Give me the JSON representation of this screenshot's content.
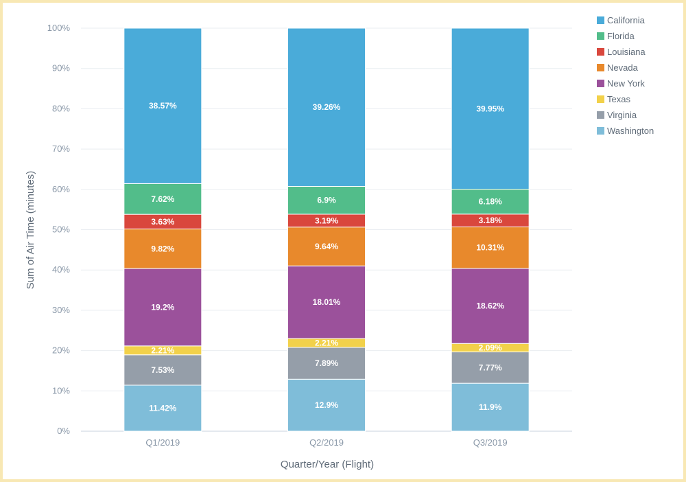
{
  "chart_data": {
    "type": "bar",
    "stacked": true,
    "normalized": true,
    "title": "",
    "xlabel": "Quarter/Year (Flight)",
    "ylabel": "Sum of Air Time (minutes)",
    "ylim": [
      0,
      100
    ],
    "yticks": [
      "0%",
      "10%",
      "20%",
      "30%",
      "40%",
      "50%",
      "60%",
      "70%",
      "80%",
      "90%",
      "100%"
    ],
    "grid": true,
    "legend_position": "top-right",
    "categories": [
      "Q1/2019",
      "Q2/2019",
      "Q3/2019"
    ],
    "series": [
      {
        "name": "Washington",
        "color": "#7fbdd9",
        "values": [
          11.42,
          12.9,
          11.9
        ],
        "labels": [
          "11.42%",
          "12.9%",
          "11.9%"
        ]
      },
      {
        "name": "Virginia",
        "color": "#959ea9",
        "values": [
          7.53,
          7.89,
          7.77
        ],
        "labels": [
          "7.53%",
          "7.89%",
          "7.77%"
        ]
      },
      {
        "name": "Texas",
        "color": "#f2d14a",
        "values": [
          2.21,
          2.21,
          2.09
        ],
        "labels": [
          "2.21%",
          "2.21%",
          "2.09%"
        ]
      },
      {
        "name": "New York",
        "color": "#9b519b",
        "values": [
          19.2,
          18.01,
          18.62
        ],
        "labels": [
          "19.2%",
          "18.01%",
          "18.62%"
        ]
      },
      {
        "name": "Nevada",
        "color": "#e8892c",
        "values": [
          9.82,
          9.64,
          10.31
        ],
        "labels": [
          "9.82%",
          "9.64%",
          "10.31%"
        ]
      },
      {
        "name": "Louisiana",
        "color": "#d9473d",
        "values": [
          3.63,
          3.19,
          3.18
        ],
        "labels": [
          "3.63%",
          "3.19%",
          "3.18%"
        ]
      },
      {
        "name": "Florida",
        "color": "#52bd8a",
        "values": [
          7.62,
          6.9,
          6.18
        ],
        "labels": [
          "7.62%",
          "6.9%",
          "6.18%"
        ]
      },
      {
        "name": "California",
        "color": "#4aabd9",
        "values": [
          38.57,
          39.26,
          39.95
        ],
        "labels": [
          "38.57%",
          "39.26%",
          "39.95%"
        ]
      }
    ],
    "legend_order": [
      "California",
      "Florida",
      "Louisiana",
      "Nevada",
      "New York",
      "Texas",
      "Virginia",
      "Washington"
    ]
  }
}
